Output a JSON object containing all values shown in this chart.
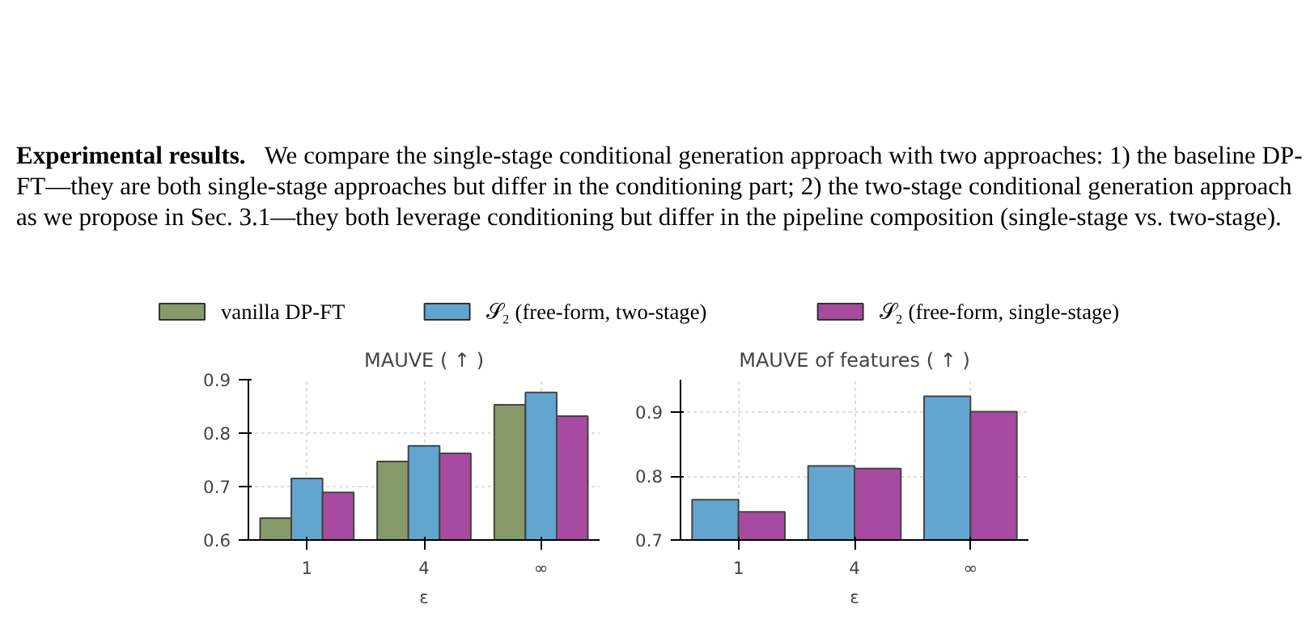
{
  "chart_data": [
    {
      "type": "bar",
      "title": "MAUVE ( ↑ )",
      "xlabel": "ε",
      "categories": [
        "1",
        "4",
        "∞"
      ],
      "annotations": [
        "Experimental results.",
        "We compare the single-stage conditional generation approach with two approaches: 1) the baseline DP-FT—they are both single-stage approaches but differ in the conditioning part; 2) the two-stage conditional generation approach as we propose in Sec. 3.1—they both leverage conditioning but differ in the pipeline composition (single-stage vs. two-stage)."
      ],
      "series": [
        {
          "name": "vanilla DP-FT",
          "color": "#869a6a",
          "values": [
            0.641,
            0.747,
            0.853
          ]
        },
        {
          "name": "𝒮₂ (free-form, two-stage)",
          "color": "#62a6d0",
          "values": [
            0.715,
            0.776,
            0.876
          ]
        },
        {
          "name": "𝒮₂ (free-form, single-stage)",
          "color": "#a64b9f",
          "values": [
            0.689,
            0.762,
            0.832
          ]
        }
      ],
      "ylim": [
        0.6,
        0.9
      ],
      "yticks": [
        0.6,
        0.7,
        0.8,
        0.9
      ],
      "grid": true,
      "legend": "top"
    },
    {
      "type": "bar",
      "title": "MAUVE of features ( ↑ )",
      "xlabel": "ε",
      "categories": [
        "1",
        "4",
        "∞"
      ],
      "series": [
        {
          "color": "#62a6d0",
          "values": [
            0.763,
            0.816,
            0.925
          ]
        },
        {
          "color": "#a64b9f",
          "values": [
            0.744,
            0.812,
            0.901
          ]
        }
      ],
      "ylim": [
        0.7,
        0.951
      ],
      "yticks": [
        0.7,
        0.8,
        0.9
      ],
      "grid": true
    }
  ]
}
